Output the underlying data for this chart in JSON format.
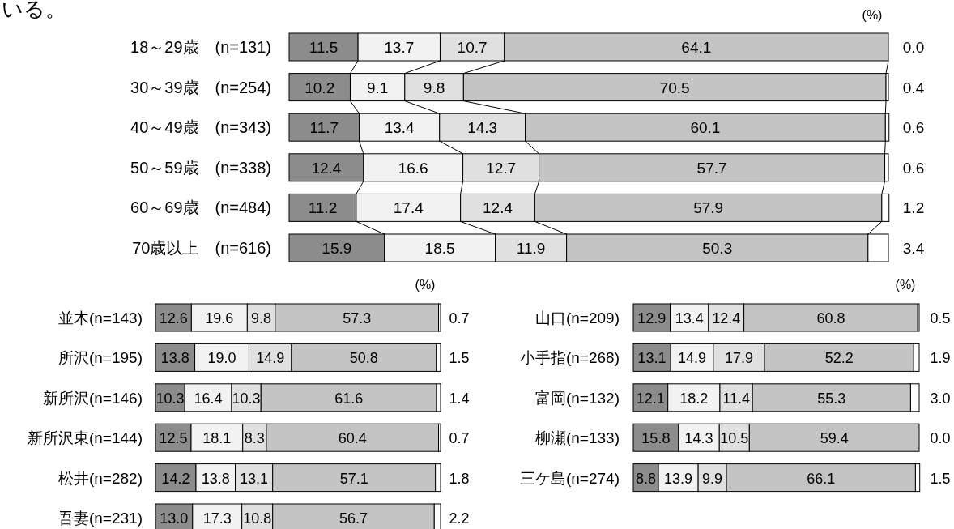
{
  "chart_data": [
    {
      "type": "bar",
      "orientation": "horizontal",
      "stacked": true,
      "xlim": [
        0,
        100
      ],
      "data_labels": true,
      "categories": [
        "18～29歳　(n=131)",
        "30～39歳　(n=254)",
        "40～49歳　(n=343)",
        "50～59歳　(n=338)",
        "60～69歳　(n=484)",
        "70歳以上　(n=616)"
      ],
      "annotations": [
        "いる。",
        "(%)"
      ],
      "series": [
        {
          "color": "#8c8c8c",
          "values": [
            11.5,
            10.2,
            11.7,
            12.4,
            11.2,
            15.9
          ],
          "value_labels": [
            "11.5",
            "10.2",
            "11.7",
            "12.4",
            "11.2",
            "15.9"
          ]
        },
        {
          "color": "#f2f2f2",
          "values": [
            13.7,
            9.1,
            13.4,
            16.6,
            17.4,
            18.5
          ],
          "value_labels": [
            "13.7",
            "9.1",
            "13.4",
            "16.6",
            "17.4",
            "18.5"
          ]
        },
        {
          "color": "#e0e0e0",
          "values": [
            10.7,
            9.8,
            14.3,
            12.7,
            12.4,
            11.9
          ],
          "value_labels": [
            "10.7",
            "9.8",
            "14.3",
            "12.7",
            "12.4",
            "11.9"
          ]
        },
        {
          "color": "#c4c4c4",
          "values": [
            64.1,
            70.5,
            60.1,
            57.7,
            57.9,
            50.3
          ],
          "value_labels": [
            "64.1",
            "70.5",
            "60.1",
            "57.7",
            "57.9",
            "50.3"
          ]
        },
        {
          "color": "#ffffff",
          "values": [
            0.0,
            0.4,
            0.6,
            0.6,
            1.2,
            3.4
          ],
          "value_labels": [
            "0.0",
            "0.4",
            "0.6",
            "0.6",
            "1.2",
            "3.4"
          ]
        }
      ]
    },
    {
      "type": "bar",
      "orientation": "horizontal",
      "stacked": true,
      "xlim": [
        0,
        100
      ],
      "data_labels": true,
      "categories": [
        "並木(n=143)",
        "所沢(n=195)",
        "新所沢(n=146)",
        "新所沢東(n=144)",
        "松井(n=282)",
        "吾妻(n=231)"
      ],
      "annotations": [
        "(%)"
      ],
      "series": [
        {
          "color": "#8c8c8c",
          "values": [
            12.6,
            13.8,
            10.3,
            12.5,
            14.2,
            13.0
          ],
          "value_labels": [
            "12.6",
            "13.8",
            "10.3",
            "12.5",
            "14.2",
            "13.0"
          ]
        },
        {
          "color": "#f2f2f2",
          "values": [
            19.6,
            19.0,
            16.4,
            18.1,
            13.8,
            17.3
          ],
          "value_labels": [
            "19.6",
            "19.0",
            "16.4",
            "18.1",
            "13.8",
            "17.3"
          ]
        },
        {
          "color": "#e0e0e0",
          "values": [
            9.8,
            14.9,
            10.3,
            8.3,
            13.1,
            10.8
          ],
          "value_labels": [
            "9.8",
            "14.9",
            "10.3",
            "8.3",
            "13.1",
            "10.8"
          ]
        },
        {
          "color": "#c4c4c4",
          "values": [
            57.3,
            50.8,
            61.6,
            60.4,
            57.1,
            56.7
          ],
          "value_labels": [
            "57.3",
            "50.8",
            "61.6",
            "60.4",
            "57.1",
            "56.7"
          ]
        },
        {
          "color": "#ffffff",
          "values": [
            0.7,
            1.5,
            1.4,
            0.7,
            1.8,
            2.2
          ],
          "value_labels": [
            "0.7",
            "1.5",
            "1.4",
            "0.7",
            "1.8",
            "2.2"
          ]
        }
      ]
    },
    {
      "type": "bar",
      "orientation": "horizontal",
      "stacked": true,
      "xlim": [
        0,
        100
      ],
      "data_labels": true,
      "categories": [
        "山口(n=209)",
        "小手指(n=268)",
        "富岡(n=132)",
        "柳瀬(n=133)",
        "三ケ島(n=274)"
      ],
      "annotations": [
        "(%)"
      ],
      "series": [
        {
          "color": "#8c8c8c",
          "values": [
            12.9,
            13.1,
            12.1,
            15.8,
            8.8
          ],
          "value_labels": [
            "12.9",
            "13.1",
            "12.1",
            "15.8",
            "8.8"
          ]
        },
        {
          "color": "#f2f2f2",
          "values": [
            13.4,
            14.9,
            18.2,
            14.3,
            13.9
          ],
          "value_labels": [
            "13.4",
            "14.9",
            "18.2",
            "14.3",
            "13.9"
          ]
        },
        {
          "color": "#e0e0e0",
          "values": [
            12.4,
            17.9,
            11.4,
            10.5,
            9.9
          ],
          "value_labels": [
            "12.4",
            "17.9",
            "11.4",
            "10.5",
            "9.9"
          ]
        },
        {
          "color": "#c4c4c4",
          "values": [
            60.8,
            52.2,
            55.3,
            59.4,
            66.1
          ],
          "value_labels": [
            "60.8",
            "52.2",
            "55.3",
            "59.4",
            "66.1"
          ]
        },
        {
          "color": "#ffffff",
          "values": [
            0.5,
            1.9,
            3.0,
            0.0,
            1.5
          ],
          "value_labels": [
            "0.5",
            "1.9",
            "3.0",
            "0.0",
            "1.5"
          ]
        }
      ]
    }
  ]
}
